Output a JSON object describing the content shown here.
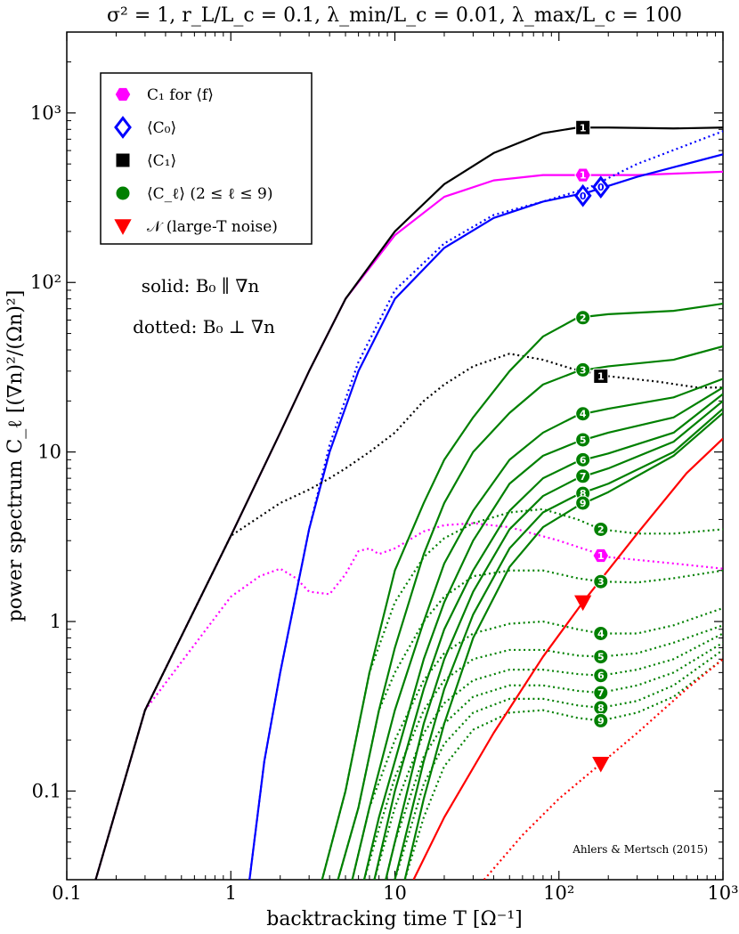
{
  "chart_data": {
    "type": "line",
    "title": "σ² = 1, r_L/L_c = 0.1, λ_min/L_c = 0.01, λ_max/L_c = 100",
    "xlabel": "backtracking time T [Ω⁻¹]",
    "ylabel": "power spectrum C_ℓ [(∇n)²/(Ωn)²]",
    "xscale": "log",
    "yscale": "log",
    "xlim": [
      0.1,
      1000
    ],
    "ylim": [
      0.03,
      3000
    ],
    "xticks": [
      {
        "v": 0.1,
        "label": "0.1"
      },
      {
        "v": 1,
        "label": "1"
      },
      {
        "v": 10,
        "label": "10"
      },
      {
        "v": 100,
        "label": "10²"
      },
      {
        "v": 1000,
        "label": "10³"
      }
    ],
    "yticks": [
      {
        "v": 0.1,
        "label": "0.1"
      },
      {
        "v": 1,
        "label": "1"
      },
      {
        "v": 10,
        "label": "10"
      },
      {
        "v": 100,
        "label": "10²"
      },
      {
        "v": 1000,
        "label": "10³"
      }
    ],
    "grid": false,
    "legend_position": "top-left",
    "legend": [
      {
        "label": "C₁ for ⟨f⟩",
        "color": "#ff00ff",
        "marker": "hexagon"
      },
      {
        "label": "⟨C₀⟩",
        "color": "#0000ff",
        "marker": "diamond"
      },
      {
        "label": "⟨C₁⟩",
        "color": "#000000",
        "marker": "square"
      },
      {
        "label": "⟨C_ℓ⟩ (2 ≤ ℓ ≤ 9)",
        "color": "#008000",
        "marker": "circle"
      },
      {
        "label": "𝒩 (large-T noise)",
        "color": "#ff0000",
        "marker": "triangle"
      }
    ],
    "annotations": [
      {
        "text": "solid: B₀ ∥ ∇n"
      },
      {
        "text": "dotted: B₀ ⊥ ∇n"
      }
    ],
    "credit": "Ahlers & Mertsch (2015)",
    "series": [
      {
        "name": "C1 f solid",
        "color": "#ff00ff",
        "style": "solid",
        "marker": "hexagon",
        "marker_label": "1",
        "x": [
          0.15,
          0.3,
          1,
          2,
          3,
          5,
          10,
          20,
          40,
          80,
          150,
          300,
          1000
        ],
        "y": [
          0.03,
          0.3,
          3.2,
          13,
          30,
          80,
          190,
          320,
          400,
          430,
          430,
          430,
          450
        ]
      },
      {
        "name": "C1 f dotted",
        "color": "#ff00ff",
        "style": "dotted",
        "marker": "hexagon",
        "marker_label": "1",
        "x": [
          0.15,
          0.3,
          1,
          1.5,
          2,
          2.5,
          3,
          4,
          5,
          6,
          7,
          8,
          10,
          15,
          20,
          30,
          50,
          100,
          200,
          500,
          1000
        ],
        "y": [
          0.03,
          0.3,
          1.4,
          1.85,
          2.05,
          1.8,
          1.5,
          1.45,
          1.9,
          2.6,
          2.7,
          2.5,
          2.7,
          3.4,
          3.7,
          3.8,
          3.6,
          3.0,
          2.4,
          2.2,
          2.05
        ]
      },
      {
        "name": "C0 solid",
        "color": "#0000ff",
        "style": "solid",
        "marker": "diamond",
        "marker_label": "0",
        "x": [
          1.3,
          1.6,
          2,
          3,
          4,
          6,
          10,
          20,
          40,
          80,
          150,
          300,
          1000
        ],
        "y": [
          0.03,
          0.15,
          0.5,
          3.5,
          10,
          30,
          80,
          160,
          240,
          300,
          340,
          420,
          570
        ]
      },
      {
        "name": "C0 dotted",
        "color": "#0000ff",
        "style": "dotted",
        "marker": "diamond",
        "marker_label": "0",
        "x": [
          1.3,
          1.6,
          2,
          3,
          4,
          6,
          10,
          20,
          40,
          80,
          150,
          300,
          1000
        ],
        "y": [
          0.03,
          0.15,
          0.5,
          3.5,
          11,
          34,
          90,
          170,
          250,
          300,
          360,
          500,
          780
        ]
      },
      {
        "name": "C1 solid",
        "color": "#000000",
        "style": "solid",
        "marker": "square",
        "marker_label": "1",
        "x": [
          0.15,
          0.3,
          1,
          2,
          3,
          5,
          10,
          20,
          40,
          80,
          130,
          200,
          500,
          1000
        ],
        "y": [
          0.03,
          0.3,
          3.2,
          13,
          30,
          80,
          200,
          380,
          580,
          760,
          820,
          820,
          810,
          820
        ]
      },
      {
        "name": "C1 dotted",
        "color": "#000000",
        "style": "dotted",
        "marker": "square",
        "marker_label": "1",
        "x": [
          0.15,
          0.3,
          1,
          2,
          3,
          4,
          5,
          7,
          10,
          15,
          20,
          30,
          50,
          80,
          120,
          200,
          400,
          700,
          1000
        ],
        "y": [
          0.03,
          0.3,
          3.2,
          5,
          6,
          7,
          8,
          10,
          13,
          20,
          25,
          32,
          38,
          35,
          31,
          28,
          26,
          24,
          24
        ]
      },
      {
        "name": "C2 solid",
        "color": "#008000",
        "style": "solid",
        "marker": "circle",
        "marker_label": "2",
        "x": [
          3.6,
          5,
          7,
          10,
          15,
          20,
          30,
          50,
          80,
          130,
          200,
          500,
          1000
        ],
        "y": [
          0.03,
          0.1,
          0.5,
          2,
          5,
          9,
          16,
          30,
          48,
          62,
          65,
          68,
          75
        ]
      },
      {
        "name": "C3 solid",
        "color": "#008000",
        "style": "solid",
        "marker": "circle",
        "marker_label": "3",
        "x": [
          4.5,
          6,
          8,
          10,
          15,
          20,
          30,
          50,
          80,
          130,
          200,
          500,
          1000
        ],
        "y": [
          0.03,
          0.08,
          0.3,
          0.7,
          2.5,
          5,
          10,
          17,
          25,
          30,
          32,
          35,
          42
        ]
      },
      {
        "name": "C4 solid",
        "color": "#008000",
        "style": "solid",
        "marker": "circle",
        "marker_label": "4",
        "x": [
          5.5,
          7,
          10,
          15,
          20,
          30,
          50,
          80,
          130,
          200,
          500,
          1000
        ],
        "y": [
          0.03,
          0.08,
          0.3,
          1,
          2.2,
          4.5,
          9,
          13,
          16.5,
          18,
          21,
          27
        ]
      },
      {
        "name": "C5 solid",
        "color": "#008000",
        "style": "solid",
        "marker": "circle",
        "marker_label": "5",
        "x": [
          6.5,
          8,
          10,
          15,
          20,
          30,
          50,
          80,
          130,
          200,
          500,
          1000
        ],
        "y": [
          0.03,
          0.07,
          0.15,
          0.6,
          1.3,
          3,
          6.5,
          9.5,
          11.5,
          13,
          16,
          24
        ]
      },
      {
        "name": "C6 solid",
        "color": "#008000",
        "style": "solid",
        "marker": "circle",
        "marker_label": "6",
        "x": [
          7.5,
          10,
          15,
          20,
          30,
          50,
          80,
          130,
          200,
          500,
          1000
        ],
        "y": [
          0.03,
          0.1,
          0.4,
          0.9,
          2,
          4.5,
          7,
          8.8,
          9.8,
          13,
          22
        ]
      },
      {
        "name": "C7 solid",
        "color": "#008000",
        "style": "solid",
        "marker": "circle",
        "marker_label": "7",
        "x": [
          8.8,
          10,
          15,
          20,
          30,
          50,
          80,
          130,
          200,
          500,
          1000
        ],
        "y": [
          0.03,
          0.05,
          0.25,
          0.6,
          1.5,
          3.5,
          5.5,
          7,
          8,
          11.5,
          20
        ]
      },
      {
        "name": "C8 solid",
        "color": "#008000",
        "style": "solid",
        "marker": "circle",
        "marker_label": "8",
        "x": [
          10,
          15,
          20,
          30,
          50,
          80,
          130,
          200,
          500,
          1000
        ],
        "y": [
          0.03,
          0.15,
          0.4,
          1.1,
          2.7,
          4.4,
          5.6,
          6.5,
          10,
          18
        ]
      },
      {
        "name": "C9 solid",
        "color": "#008000",
        "style": "solid",
        "marker": "circle",
        "marker_label": "9",
        "x": [
          11.5,
          15,
          20,
          30,
          50,
          80,
          130,
          200,
          500,
          1000
        ],
        "y": [
          0.03,
          0.09,
          0.25,
          0.8,
          2.1,
          3.6,
          4.8,
          5.8,
          9.5,
          17
        ]
      },
      {
        "name": "C2 dotted",
        "color": "#008000",
        "style": "dotted",
        "marker": "circle",
        "marker_label": "2",
        "x": [
          3.6,
          5,
          7,
          10,
          15,
          20,
          30,
          50,
          80,
          130,
          180,
          300,
          500,
          1000
        ],
        "y": [
          0.03,
          0.1,
          0.5,
          1.3,
          2.4,
          3.1,
          3.8,
          4.4,
          4.6,
          4.0,
          3.5,
          3.3,
          3.3,
          3.5
        ]
      },
      {
        "name": "C3 dotted",
        "color": "#008000",
        "style": "dotted",
        "marker": "circle",
        "marker_label": "3",
        "x": [
          4.5,
          6,
          8,
          10,
          15,
          20,
          30,
          50,
          80,
          130,
          180,
          300,
          500,
          1000
        ],
        "y": [
          0.03,
          0.08,
          0.3,
          0.5,
          1.0,
          1.4,
          1.85,
          2.0,
          2.0,
          1.8,
          1.72,
          1.7,
          1.8,
          2.0
        ]
      },
      {
        "name": "C4 dotted",
        "color": "#008000",
        "style": "dotted",
        "marker": "circle",
        "marker_label": "4",
        "x": [
          5.5,
          7,
          10,
          15,
          20,
          30,
          50,
          80,
          130,
          180,
          300,
          500,
          1000
        ],
        "y": [
          0.03,
          0.08,
          0.2,
          0.45,
          0.65,
          0.85,
          0.97,
          1.0,
          0.9,
          0.85,
          0.85,
          0.95,
          1.2
        ]
      },
      {
        "name": "C5 dotted",
        "color": "#008000",
        "style": "dotted",
        "marker": "circle",
        "marker_label": "5",
        "x": [
          6.5,
          8,
          10,
          15,
          20,
          30,
          50,
          80,
          130,
          180,
          300,
          500,
          1000
        ],
        "y": [
          0.03,
          0.06,
          0.12,
          0.3,
          0.45,
          0.6,
          0.68,
          0.68,
          0.63,
          0.62,
          0.65,
          0.75,
          0.95
        ]
      },
      {
        "name": "C6 dotted",
        "color": "#008000",
        "style": "dotted",
        "marker": "circle",
        "marker_label": "6",
        "x": [
          7.5,
          10,
          15,
          20,
          30,
          50,
          80,
          130,
          180,
          300,
          500,
          1000
        ],
        "y": [
          0.03,
          0.08,
          0.22,
          0.33,
          0.45,
          0.52,
          0.52,
          0.49,
          0.48,
          0.52,
          0.6,
          0.85
        ]
      },
      {
        "name": "C7 dotted",
        "color": "#008000",
        "style": "dotted",
        "marker": "circle",
        "marker_label": "7",
        "x": [
          8.8,
          10,
          15,
          20,
          30,
          50,
          80,
          130,
          180,
          300,
          500,
          1000
        ],
        "y": [
          0.03,
          0.05,
          0.16,
          0.25,
          0.36,
          0.42,
          0.42,
          0.39,
          0.38,
          0.42,
          0.5,
          0.75
        ]
      },
      {
        "name": "C8 dotted",
        "color": "#008000",
        "style": "dotted",
        "marker": "circle",
        "marker_label": "8",
        "x": [
          10,
          15,
          20,
          30,
          50,
          80,
          130,
          180,
          300,
          500,
          1000
        ],
        "y": [
          0.03,
          0.11,
          0.19,
          0.29,
          0.35,
          0.35,
          0.32,
          0.31,
          0.34,
          0.42,
          0.68
        ]
      },
      {
        "name": "C9 dotted",
        "color": "#008000",
        "style": "dotted",
        "marker": "circle",
        "marker_label": "9",
        "x": [
          11.5,
          15,
          20,
          30,
          50,
          80,
          130,
          180,
          300,
          500,
          1000
        ],
        "y": [
          0.03,
          0.07,
          0.14,
          0.23,
          0.29,
          0.3,
          0.27,
          0.26,
          0.29,
          0.36,
          0.6
        ]
      },
      {
        "name": "N solid",
        "color": "#ff0000",
        "style": "solid",
        "marker": "triangle",
        "marker_label": "",
        "x": [
          13,
          20,
          40,
          80,
          140,
          300,
          600,
          1000
        ],
        "y": [
          0.03,
          0.07,
          0.22,
          0.62,
          1.3,
          3.3,
          7.5,
          12
        ]
      },
      {
        "name": "N dotted",
        "color": "#ff0000",
        "style": "dotted",
        "marker": "triangle",
        "marker_label": "",
        "x": [
          35,
          60,
          100,
          180,
          300,
          600,
          1000
        ],
        "y": [
          0.03,
          0.055,
          0.09,
          0.145,
          0.22,
          0.4,
          0.6
        ]
      }
    ],
    "markers": [
      {
        "series": 0,
        "x": 140,
        "y": 430
      },
      {
        "series": 1,
        "x": 180,
        "y": 2.45
      },
      {
        "series": 2,
        "x": 140,
        "y": 325
      },
      {
        "series": 3,
        "x": 180,
        "y": 365
      },
      {
        "series": 4,
        "x": 140,
        "y": 820
      },
      {
        "series": 5,
        "x": 180,
        "y": 28
      },
      {
        "series": 6,
        "x": 140,
        "y": 62
      },
      {
        "series": 7,
        "x": 140,
        "y": 30.5
      },
      {
        "series": 8,
        "x": 140,
        "y": 16.8
      },
      {
        "series": 9,
        "x": 140,
        "y": 11.8
      },
      {
        "series": 10,
        "x": 140,
        "y": 9.0
      },
      {
        "series": 11,
        "x": 140,
        "y": 7.2
      },
      {
        "series": 12,
        "x": 140,
        "y": 5.7
      },
      {
        "series": 13,
        "x": 140,
        "y": 5.0
      },
      {
        "series": 14,
        "x": 180,
        "y": 3.5
      },
      {
        "series": 15,
        "x": 180,
        "y": 1.72
      },
      {
        "series": 16,
        "x": 180,
        "y": 0.85
      },
      {
        "series": 17,
        "x": 180,
        "y": 0.62
      },
      {
        "series": 18,
        "x": 180,
        "y": 0.48
      },
      {
        "series": 19,
        "x": 180,
        "y": 0.38
      },
      {
        "series": 20,
        "x": 180,
        "y": 0.31
      },
      {
        "series": 21,
        "x": 180,
        "y": 0.26
      },
      {
        "series": 22,
        "x": 140,
        "y": 1.3
      },
      {
        "series": 23,
        "x": 180,
        "y": 0.145
      }
    ]
  }
}
